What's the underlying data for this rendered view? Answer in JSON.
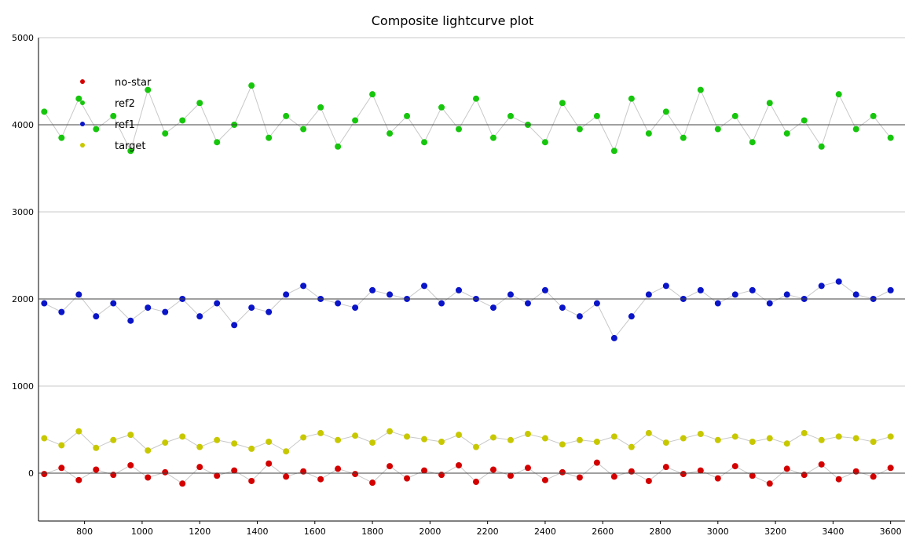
{
  "chart_data": {
    "type": "scatter",
    "title": "Composite lightcurve plot",
    "xlabel": "",
    "ylabel": "",
    "xlim": [
      640,
      3650
    ],
    "ylim": [
      -550,
      5000
    ],
    "x_ticks": [
      800,
      1000,
      1200,
      1400,
      1600,
      1800,
      2000,
      2200,
      2400,
      2600,
      2800,
      3000,
      3200,
      3400,
      3600
    ],
    "y_ticks": [
      0,
      1000,
      2000,
      3000,
      4000,
      5000
    ],
    "grid": "horizontal",
    "legend_position": "top-left",
    "reference_lines": [
      0,
      2000,
      4000
    ],
    "series": [
      {
        "name": "no-star",
        "color": "#d40000",
        "x": [
          660,
          720,
          780,
          840,
          900,
          960,
          1020,
          1080,
          1140,
          1200,
          1260,
          1320,
          1380,
          1440,
          1500,
          1560,
          1620,
          1680,
          1740,
          1800,
          1860,
          1920,
          1980,
          2040,
          2100,
          2160,
          2220,
          2280,
          2340,
          2400,
          2460,
          2520,
          2580,
          2640,
          2700,
          2760,
          2820,
          2880,
          2940,
          3000,
          3060,
          3120,
          3180,
          3240,
          3300,
          3360,
          3420,
          3480,
          3540,
          3600
        ],
        "y": [
          -10,
          60,
          -80,
          40,
          -20,
          90,
          -50,
          10,
          -120,
          70,
          -30,
          30,
          -90,
          110,
          -40,
          20,
          -70,
          50,
          -10,
          -110,
          80,
          -60,
          30,
          -20,
          90,
          -100,
          40,
          -30,
          60,
          -80,
          10,
          -50,
          120,
          -40,
          20,
          -90,
          70,
          -10,
          30,
          -60,
          80,
          -30,
          -120,
          50,
          -20,
          100,
          -70,
          20,
          -40,
          60
        ]
      },
      {
        "name": "ref2",
        "color": "#16c60c",
        "x": [
          660,
          720,
          780,
          840,
          900,
          960,
          1020,
          1080,
          1140,
          1200,
          1260,
          1320,
          1380,
          1440,
          1500,
          1560,
          1620,
          1680,
          1740,
          1800,
          1860,
          1920,
          1980,
          2040,
          2100,
          2160,
          2220,
          2280,
          2340,
          2400,
          2460,
          2520,
          2580,
          2640,
          2700,
          2760,
          2820,
          2880,
          2940,
          3000,
          3060,
          3120,
          3180,
          3240,
          3300,
          3360,
          3420,
          3480,
          3540,
          3600
        ],
        "y": [
          4150,
          3850,
          4300,
          3950,
          4100,
          3700,
          4400,
          3900,
          4050,
          4250,
          3800,
          4000,
          4450,
          3850,
          4100,
          3950,
          4200,
          3750,
          4050,
          4350,
          3900,
          4100,
          3800,
          4200,
          3950,
          4300,
          3850,
          4100,
          4000,
          3800,
          4250,
          3950,
          4100,
          3700,
          4300,
          3900,
          4150,
          3850,
          4400,
          3950,
          4100,
          3800,
          4250,
          3900,
          4050,
          3750,
          4350,
          3950,
          4100,
          3850
        ]
      },
      {
        "name": "ref1",
        "color": "#0a14c8",
        "x": [
          660,
          720,
          780,
          840,
          900,
          960,
          1020,
          1080,
          1140,
          1200,
          1260,
          1320,
          1380,
          1440,
          1500,
          1560,
          1620,
          1680,
          1740,
          1800,
          1860,
          1920,
          1980,
          2040,
          2100,
          2160,
          2220,
          2280,
          2340,
          2400,
          2460,
          2520,
          2580,
          2640,
          2700,
          2760,
          2820,
          2880,
          2940,
          3000,
          3060,
          3120,
          3180,
          3240,
          3300,
          3360,
          3420,
          3480,
          3540,
          3600
        ],
        "y": [
          1950,
          1850,
          2050,
          1800,
          1950,
          1750,
          1900,
          1850,
          2000,
          1800,
          1950,
          1700,
          1900,
          1850,
          2050,
          2150,
          2000,
          1950,
          1900,
          2100,
          2050,
          2000,
          2150,
          1950,
          2100,
          2000,
          1900,
          2050,
          1950,
          2100,
          1900,
          1800,
          1950,
          1550,
          1800,
          2050,
          2150,
          2000,
          2100,
          1950,
          2050,
          2100,
          1950,
          2050,
          2000,
          2150,
          2200,
          2050,
          2000,
          2100
        ]
      },
      {
        "name": "target",
        "color": "#c8c800",
        "x": [
          660,
          720,
          780,
          840,
          900,
          960,
          1020,
          1080,
          1140,
          1200,
          1260,
          1320,
          1380,
          1440,
          1500,
          1560,
          1620,
          1680,
          1740,
          1800,
          1860,
          1920,
          1980,
          2040,
          2100,
          2160,
          2220,
          2280,
          2340,
          2400,
          2460,
          2520,
          2580,
          2640,
          2700,
          2760,
          2820,
          2880,
          2940,
          3000,
          3060,
          3120,
          3180,
          3240,
          3300,
          3360,
          3420,
          3480,
          3540,
          3600
        ],
        "y": [
          400,
          320,
          480,
          290,
          380,
          440,
          260,
          350,
          420,
          300,
          380,
          340,
          280,
          360,
          250,
          410,
          460,
          380,
          430,
          350,
          480,
          420,
          390,
          360,
          440,
          300,
          410,
          380,
          450,
          400,
          330,
          380,
          360,
          420,
          300,
          460,
          350,
          400,
          450,
          380,
          420,
          360,
          400,
          340,
          460,
          380,
          420,
          400,
          360,
          420
        ]
      }
    ]
  }
}
